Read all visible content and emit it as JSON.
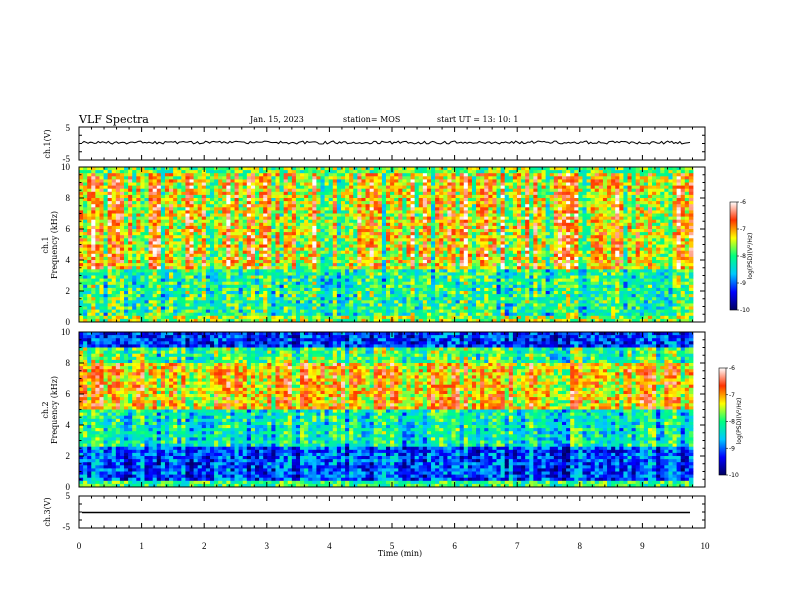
{
  "header": {
    "title": "VLF Spectra",
    "date": "Jan. 15, 2023",
    "station": "station= MOS",
    "start": "start  UT  =   13: 10: 1"
  },
  "chart_data": {
    "type": "heatmap",
    "xlabel": "Time  (min)",
    "xlim": [
      0,
      10
    ],
    "x_ticks": [
      "0",
      "1",
      "2",
      "3",
      "4",
      "5",
      "6",
      "7",
      "8",
      "9",
      "10"
    ],
    "panels": [
      {
        "id": "ch1-waveform",
        "ylabel": "ch.1(V)",
        "ylim": [
          -5,
          5
        ],
        "y_ticks": [
          "5",
          "-5"
        ],
        "type": "line"
      },
      {
        "id": "ch1-spectrogram",
        "ylabel_top": "ch.1",
        "ylabel": "Frequency  (kHz)",
        "ylim": [
          0,
          10
        ],
        "y_ticks": [
          "0",
          "2",
          "4",
          "6",
          "8",
          "10"
        ],
        "type": "heatmap",
        "colorbar": {
          "label": "log(PSD)(V²/Hz)",
          "range": [
            -10,
            -6
          ],
          "ticks": [
            "-6",
            "-7",
            "-8",
            "-9",
            "-10"
          ]
        }
      },
      {
        "id": "ch2-spectrogram",
        "ylabel_top": "ch.2",
        "ylabel": "Frequency  (kHz)",
        "ylim": [
          0,
          10
        ],
        "y_ticks": [
          "0",
          "2",
          "4",
          "6",
          "8",
          "10"
        ],
        "type": "heatmap",
        "colorbar": {
          "label": "log(PSD)(V²/Hz)",
          "range": [
            -10,
            -6
          ],
          "ticks": [
            "-6",
            "-7",
            "-8",
            "-9",
            "-10"
          ]
        }
      },
      {
        "id": "ch3-waveform",
        "ylabel": "ch.3(V)",
        "ylim": [
          -5,
          5
        ],
        "y_ticks": [
          "5",
          "-5"
        ],
        "type": "line"
      }
    ],
    "grid": false,
    "colormap": [
      "#000060",
      "#0000ff",
      "#00c8ff",
      "#00ff80",
      "#ffff00",
      "#ff3300",
      "#ffffff"
    ]
  }
}
